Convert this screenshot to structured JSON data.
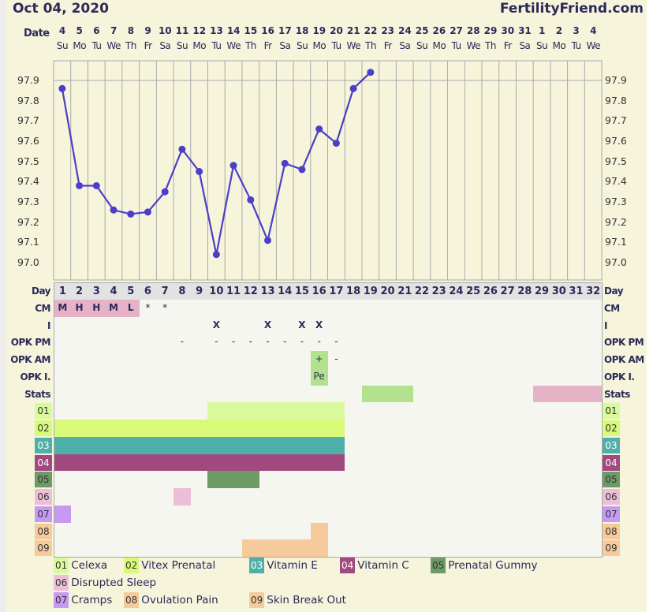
{
  "header": {
    "title": "Oct 04, 2020",
    "site": "FertilityFriend.com"
  },
  "labels": {
    "date": "Date",
    "day": "Day",
    "cm": "CM",
    "i": "I",
    "opk_pm": "OPK PM",
    "opk_am": "OPK AM",
    "opk_i": "OPK I.",
    "stats": "Stats"
  },
  "dates": [
    "4",
    "5",
    "6",
    "7",
    "8",
    "9",
    "10",
    "11",
    "12",
    "13",
    "14",
    "15",
    "16",
    "17",
    "18",
    "19",
    "20",
    "21",
    "22",
    "23",
    "24",
    "25",
    "26",
    "27",
    "28",
    "29",
    "30",
    "31",
    "1",
    "2",
    "3",
    "4"
  ],
  "weekdays": [
    "Su",
    "Mo",
    "Tu",
    "We",
    "Th",
    "Fr",
    "Sa",
    "Su",
    "Mo",
    "Tu",
    "We",
    "Th",
    "Fr",
    "Sa",
    "Su",
    "Mo",
    "Tu",
    "We",
    "Th",
    "Fr",
    "Sa",
    "Su",
    "Mo",
    "Tu",
    "We",
    "Th",
    "Fr",
    "Sa",
    "Su",
    "Mo",
    "Tu",
    "We"
  ],
  "chart_data": {
    "type": "line",
    "ylim": [
      97.0,
      97.9
    ],
    "yticks": [
      "97.9",
      "97.8",
      "97.7",
      "97.6",
      "97.5",
      "97.4",
      "97.3",
      "97.2",
      "97.1",
      "97.0"
    ],
    "x": [
      1,
      2,
      3,
      4,
      5,
      6,
      7,
      8,
      9,
      10,
      11,
      12,
      13,
      14,
      15,
      16,
      17,
      18,
      19
    ],
    "values": [
      97.86,
      97.38,
      97.38,
      97.26,
      97.24,
      97.25,
      97.35,
      97.56,
      97.45,
      97.04,
      97.48,
      97.31,
      97.11,
      97.49,
      97.46,
      97.66,
      97.59,
      97.86,
      97.94
    ],
    "line_color": "#4a3fc8",
    "grid": true
  },
  "rows": {
    "cm": {
      "1": "M",
      "2": "H",
      "3": "H",
      "4": "M",
      "5": "L",
      "6": "*",
      "7": "*"
    },
    "cm_color": "#e6b3c6",
    "cm_colored_days": [
      1,
      2,
      3,
      4,
      5
    ],
    "i": {
      "10": "X",
      "13": "X",
      "15": "X",
      "16": "X"
    },
    "opk_pm": {
      "8": "-",
      "10": "-",
      "11": "-",
      "12": "-",
      "13": "-",
      "14": "-",
      "15": "-",
      "16": "-",
      "17": "-"
    },
    "opk_am": {
      "16": "+",
      "17": "-"
    },
    "opk_i": {
      "16": "Pe"
    },
    "opk_positive_color": "#b3e28e",
    "stats": [
      {
        "days": [
          19,
          20,
          21
        ],
        "color": "#b3e28e"
      },
      {
        "days": [
          29,
          30,
          31,
          32
        ],
        "color": "#e6b3c6"
      }
    ]
  },
  "legend": [
    {
      "code": "01",
      "label": "Celexa",
      "color": "#d9fa9c",
      "days": [
        10,
        11,
        12,
        13,
        14,
        15,
        16,
        17
      ]
    },
    {
      "code": "02",
      "label": "Vitex Prenatal",
      "color": "#d8fa78",
      "days": [
        1,
        2,
        3,
        4,
        5,
        6,
        7,
        8,
        9,
        10,
        11,
        12,
        13,
        14,
        15,
        16,
        17
      ]
    },
    {
      "code": "03",
      "label": "Vitamin E",
      "color": "#4fb0aa",
      "days": [
        1,
        2,
        3,
        4,
        5,
        6,
        7,
        8,
        9,
        10,
        11,
        12,
        13,
        14,
        15,
        16,
        17
      ]
    },
    {
      "code": "04",
      "label": "Vitamin C",
      "color": "#a04a80",
      "days": [
        1,
        2,
        3,
        4,
        5,
        6,
        7,
        8,
        9,
        10,
        11,
        12,
        13,
        14,
        15,
        16,
        17
      ]
    },
    {
      "code": "05",
      "label": "Prenatal Gummy",
      "color": "#6e9a66",
      "days": [
        10,
        11,
        12
      ]
    },
    {
      "code": "06",
      "label": "Disrupted Sleep",
      "color": "#ecbfd8",
      "days": [
        8
      ]
    },
    {
      "code": "07",
      "label": "Cramps",
      "color": "#c79af2",
      "days": [
        1
      ]
    },
    {
      "code": "08",
      "label": "Ovulation Pain",
      "color": "#f6cb9c",
      "days": [
        16
      ]
    },
    {
      "code": "09",
      "label": "Skin Break Out",
      "color": "#f6cb9c",
      "days": [
        12,
        13,
        14,
        15,
        16
      ]
    }
  ]
}
